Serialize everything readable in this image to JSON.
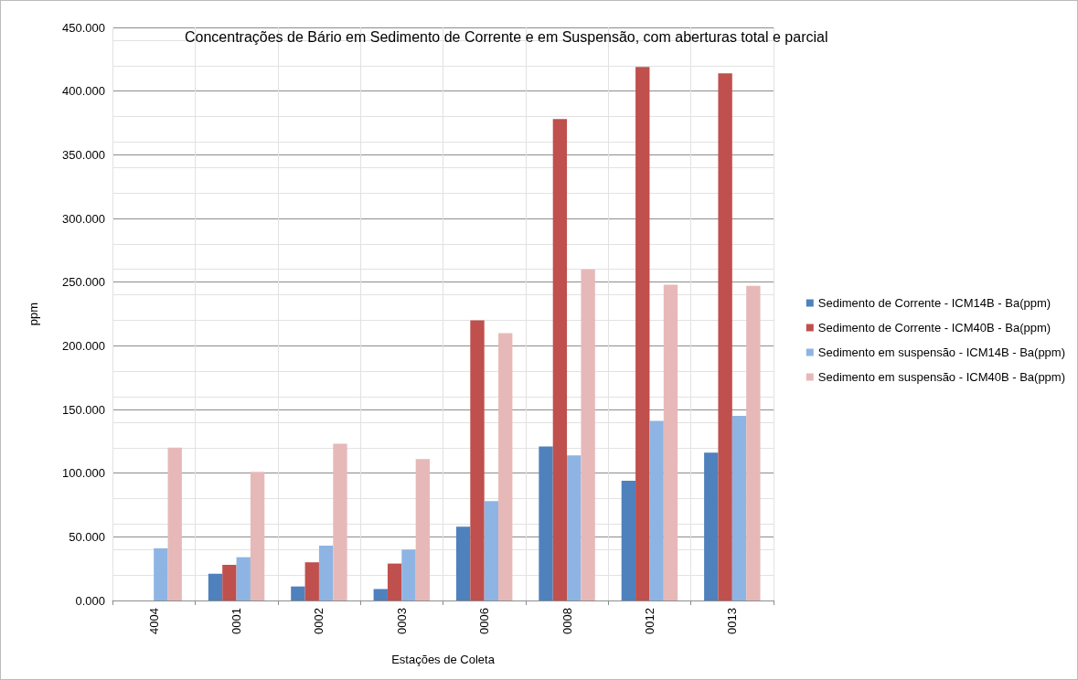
{
  "chart_data": {
    "type": "bar",
    "title": "Concentrações de Bário em Sedimento de Corrente e em Suspensão, com aberturas total e parcial",
    "xlabel": "Estações de Coleta",
    "ylabel": "ppm",
    "categories": [
      "4004",
      "0001",
      "0002",
      "0003",
      "0006",
      "0008",
      "0012",
      "0013"
    ],
    "series": [
      {
        "name": "Sedimento de Corrente - ICM14B - Ba(ppm)",
        "color": "#4f81bd",
        "values": [
          null,
          21,
          11,
          9,
          58,
          121,
          94,
          116
        ]
      },
      {
        "name": "Sedimento de Corrente - ICM40B - Ba(ppm)",
        "color": "#c0504d",
        "values": [
          null,
          28,
          30,
          29,
          220,
          378,
          419,
          414
        ]
      },
      {
        "name": "Sedimento em suspensão - ICM14B - Ba(ppm)",
        "color": "#8eb4e3",
        "values": [
          41,
          34,
          43,
          40,
          78,
          114,
          141,
          145
        ]
      },
      {
        "name": "Sedimento em suspensão - ICM40B - Ba(ppm)",
        "color": "#e6b9b8",
        "values": [
          120,
          101,
          123,
          111,
          210,
          260,
          248,
          247
        ]
      }
    ],
    "ylim": [
      0,
      450
    ],
    "yticks": [
      {
        "value": 0,
        "label": "0.000"
      },
      {
        "value": 50,
        "label": "50.000"
      },
      {
        "value": 100,
        "label": "100.000"
      },
      {
        "value": 150,
        "label": "150.000"
      },
      {
        "value": 200,
        "label": "200.000"
      },
      {
        "value": 250,
        "label": "250.000"
      },
      {
        "value": 300,
        "label": "300.000"
      },
      {
        "value": 350,
        "label": "350.000"
      },
      {
        "value": 400,
        "label": "400.000"
      },
      {
        "value": 450,
        "label": "450.000"
      }
    ],
    "grid": true,
    "legend": "right"
  }
}
